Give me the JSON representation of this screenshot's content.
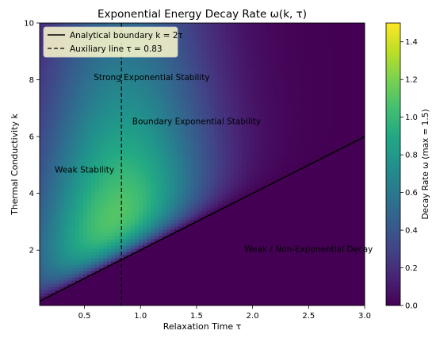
{
  "chart_data": {
    "type": "heatmap",
    "title": "Exponential Energy Decay Rate ω(k, τ)",
    "xlabel": "Relaxation Time τ",
    "ylabel": "Thermal Conductivity k",
    "xlim": [
      0.1,
      3.0
    ],
    "ylim": [
      0.05,
      10.0
    ],
    "x_ticks": [
      0.5,
      1.0,
      1.5,
      2.0,
      2.5,
      3.0
    ],
    "x_tick_labels": [
      "0.5",
      "1.0",
      "1.5",
      "2.0",
      "2.5",
      "3.0"
    ],
    "y_ticks": [
      2,
      4,
      6,
      8,
      10
    ],
    "y_tick_labels": [
      "2",
      "4",
      "6",
      "8",
      "10"
    ],
    "colormap": "viridis",
    "colorbar": {
      "label": "Decay Rate ω (max = 1.5)",
      "min": 0.0,
      "max": 1.5,
      "ticks": [
        0.0,
        0.2,
        0.4,
        0.6,
        0.8,
        1.0,
        1.2,
        1.4
      ],
      "tick_labels": [
        "0.0",
        "0.2",
        "0.4",
        "0.6",
        "0.8",
        "1.0",
        "1.2",
        "1.4"
      ]
    },
    "lines": [
      {
        "name": "Analytical boundary k = 2τ",
        "style": "solid",
        "color": "#000000",
        "slope": 2
      },
      {
        "name": "Auxiliary line τ = 0.83",
        "style": "dashed",
        "color": "#000000",
        "tau": 0.83
      }
    ],
    "legend": {
      "placement": "top-left",
      "entries": [
        "Analytical boundary k = 2τ",
        "Auxiliary line τ = 0.83"
      ]
    },
    "annotations": [
      {
        "text": "Strong Exponential Stability",
        "x": 1.1,
        "y": 8.1
      },
      {
        "text": "Boundary Exponential Stability",
        "x": 1.5,
        "y": 6.55
      },
      {
        "text": "Weak Stability",
        "x": 0.5,
        "y": 4.85
      },
      {
        "text": "Weak / Non-Exponential Decay",
        "x": 2.5,
        "y": 2.05
      }
    ],
    "grid": false
  }
}
